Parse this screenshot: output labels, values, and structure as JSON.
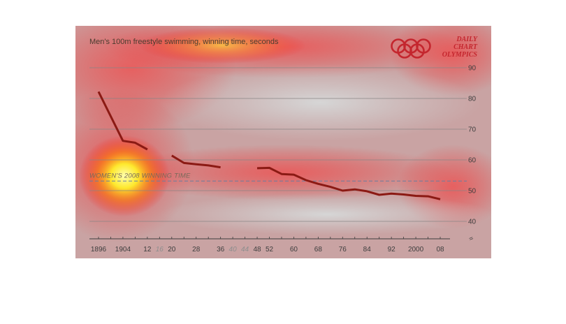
{
  "chart_data": {
    "type": "line",
    "title": "Men's 100m freestyle swimming, winning time, seconds",
    "brand_lines": [
      "DAILY",
      "CHART",
      "OLYMPICS"
    ],
    "ylim": [
      40,
      90
    ],
    "yticks": [
      40,
      50,
      60,
      70,
      80,
      90
    ],
    "y_axis_side": "right",
    "grid": true,
    "xlim": [
      1896,
      2008
    ],
    "xticks": [
      {
        "year": 1896,
        "label": "1896",
        "held": true
      },
      {
        "year": 1904,
        "label": "1904",
        "held": true
      },
      {
        "year": 1912,
        "label": "12",
        "held": true
      },
      {
        "year": 1916,
        "label": "16",
        "held": false
      },
      {
        "year": 1920,
        "label": "20",
        "held": true
      },
      {
        "year": 1928,
        "label": "28",
        "held": true
      },
      {
        "year": 1936,
        "label": "36",
        "held": true
      },
      {
        "year": 1940,
        "label": "40",
        "held": false
      },
      {
        "year": 1944,
        "label": "44",
        "held": false
      },
      {
        "year": 1948,
        "label": "48",
        "held": true
      },
      {
        "year": 1952,
        "label": "52",
        "held": true
      },
      {
        "year": 1960,
        "label": "60",
        "held": true
      },
      {
        "year": 1968,
        "label": "68",
        "held": true
      },
      {
        "year": 1976,
        "label": "76",
        "held": true
      },
      {
        "year": 1984,
        "label": "84",
        "held": true
      },
      {
        "year": 1992,
        "label": "92",
        "held": true
      },
      {
        "year": 2000,
        "label": "2000",
        "held": true
      },
      {
        "year": 2008,
        "label": "08",
        "held": true
      }
    ],
    "series": [
      {
        "color": "#8b1a14",
        "segments": [
          [
            [
              1896,
              82.2
            ],
            [
              1904,
              66.2
            ],
            [
              1908,
              65.6
            ],
            [
              1912,
              63.4
            ]
          ],
          [
            [
              1920,
              61.4
            ],
            [
              1924,
              59.0
            ],
            [
              1928,
              58.6
            ],
            [
              1932,
              58.2
            ],
            [
              1936,
              57.6
            ]
          ],
          [
            [
              1948,
              57.3
            ],
            [
              1952,
              57.4
            ],
            [
              1956,
              55.4
            ],
            [
              1960,
              55.2
            ],
            [
              1964,
              53.4
            ],
            [
              1968,
              52.2
            ],
            [
              1972,
              51.22
            ],
            [
              1976,
              49.99
            ],
            [
              1980,
              50.4
            ],
            [
              1984,
              49.8
            ],
            [
              1988,
              48.63
            ],
            [
              1992,
              49.02
            ],
            [
              1996,
              48.74
            ],
            [
              2000,
              48.3
            ],
            [
              2004,
              48.17
            ],
            [
              2008,
              47.21
            ]
          ]
        ]
      }
    ],
    "reference_line": {
      "label": "WOMEN'S 2008 WINNING TIME",
      "value": 53.12,
      "style": "dashed",
      "color": "#6a7f9f"
    },
    "axis_break_symbol": "≈"
  }
}
